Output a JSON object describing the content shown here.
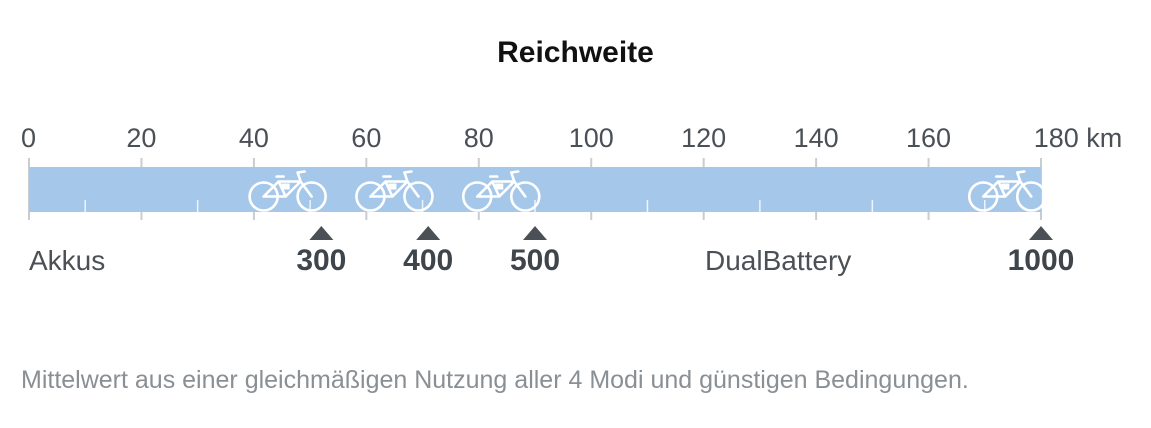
{
  "chart_data": {
    "type": "bar",
    "title": "Reichweite",
    "unit": "km",
    "xlim": [
      0,
      180
    ],
    "ticks": [
      0,
      20,
      40,
      60,
      80,
      100,
      120,
      140,
      160,
      180
    ],
    "bar_color": "#a5c8ea",
    "marker_color": "#4a5055",
    "left_label": "Akkus",
    "center_label": "DualBattery",
    "batteries": [
      {
        "label": "300",
        "range_min": 40,
        "range_max": 52
      },
      {
        "label": "400",
        "range_min": 59,
        "range_max": 71
      },
      {
        "label": "500",
        "range_min": 78,
        "range_max": 90
      },
      {
        "label": "1000",
        "range_min": 168,
        "range_max": 180
      }
    ]
  },
  "footnote": "Mittelwert aus einer gleichmäßigen Nutzung aller 4 Modi und günstigen Bedingungen."
}
